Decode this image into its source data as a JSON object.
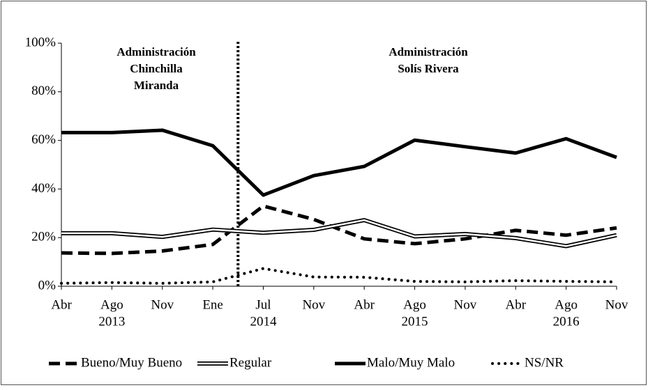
{
  "chart_data": {
    "type": "line",
    "categories": [
      "Abr",
      "Ago",
      "Nov",
      "Ene",
      "Jul",
      "Nov",
      "Abr",
      "Ago",
      "Nov",
      "Abr",
      "Ago",
      "Nov"
    ],
    "category_years": [
      null,
      "2013",
      null,
      null,
      "2014",
      null,
      null,
      "2015",
      null,
      null,
      "2016",
      null
    ],
    "series": [
      {
        "name": "Bueno/Muy Bueno",
        "color": "#000000",
        "style": "dashed",
        "values": [
          13.7,
          13.5,
          14.5,
          17.2,
          33,
          27.5,
          19.5,
          17.5,
          19.5,
          23,
          21,
          24
        ]
      },
      {
        "name": "Regular",
        "color": "#000000",
        "style": "double",
        "values": [
          21.8,
          21.8,
          20.3,
          23.3,
          22,
          23.2,
          27.2,
          20.5,
          21.5,
          19.8,
          16.5,
          21
        ]
      },
      {
        "name": "Malo/Muy Malo",
        "color": "#000000",
        "style": "solid",
        "values": [
          63.2,
          63.2,
          64.2,
          57.8,
          37.5,
          45.5,
          49.3,
          60.1,
          57.4,
          54.8,
          60.7,
          53
        ]
      },
      {
        "name": "NS/NR",
        "color": "#000000",
        "style": "dotted",
        "values": [
          1.2,
          1.5,
          1.2,
          1.8,
          7.3,
          3.8,
          3.7,
          2,
          1.8,
          2.3,
          2,
          1.8
        ]
      }
    ],
    "ylim": [
      0,
      100
    ],
    "yticks": [
      {
        "value": 0,
        "label": "0%"
      },
      {
        "value": 20,
        "label": "20%"
      },
      {
        "value": 40,
        "label": "40%"
      },
      {
        "value": 60,
        "label": "60%"
      },
      {
        "value": 80,
        "label": "80%"
      },
      {
        "value": 100,
        "label": "100%"
      }
    ],
    "annotations": [
      {
        "lines": [
          "Administración",
          "Chinchilla",
          "Miranda"
        ]
      },
      {
        "lines": [
          "Administración",
          "Solís Rivera"
        ]
      }
    ],
    "legend": "bottom"
  }
}
